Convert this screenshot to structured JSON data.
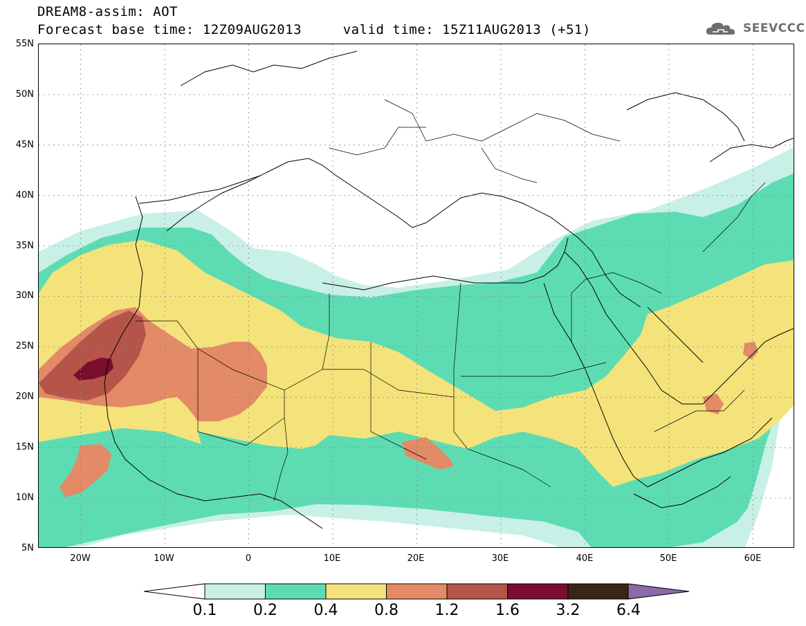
{
  "header": {
    "line1": "DREAM8-assim: AOT",
    "line2": "Forecast base time: 12Z09AUG2013     valid time: 15Z11AUG2013 (+51)",
    "logo_text": "SEEVCCC",
    "logo_icon": "cloud-icon"
  },
  "map": {
    "projection": "lat-lon",
    "lon_range": [
      -25,
      65
    ],
    "lat_range": [
      5,
      55
    ],
    "grid": true,
    "lat_labels": [
      "55N",
      "50N",
      "45N",
      "40N",
      "35N",
      "30N",
      "25N",
      "20N",
      "15N",
      "10N",
      "5N"
    ],
    "lon_labels": [
      "20W",
      "10W",
      "0",
      "10E",
      "20E",
      "30E",
      "40E",
      "50E",
      "60E"
    ],
    "fill_colors": {
      "c1": "#c8f0e6",
      "c2": "#5ddcb3",
      "c3": "#f4e37a",
      "c4": "#e38a66",
      "c5": "#b5554a",
      "c6": "#7a0e2e"
    }
  },
  "legend": {
    "levels": [
      "0.1",
      "0.2",
      "0.4",
      "0.8",
      "1.2",
      "1.6",
      "3.2",
      "6.4"
    ],
    "colors": [
      "#c8f0e6",
      "#5ddcb3",
      "#f4e37a",
      "#e38a66",
      "#b5554a",
      "#7a0e2e",
      "#3a2318"
    ],
    "under_color": "#ffffff",
    "over_color": "#8a6aa8"
  }
}
